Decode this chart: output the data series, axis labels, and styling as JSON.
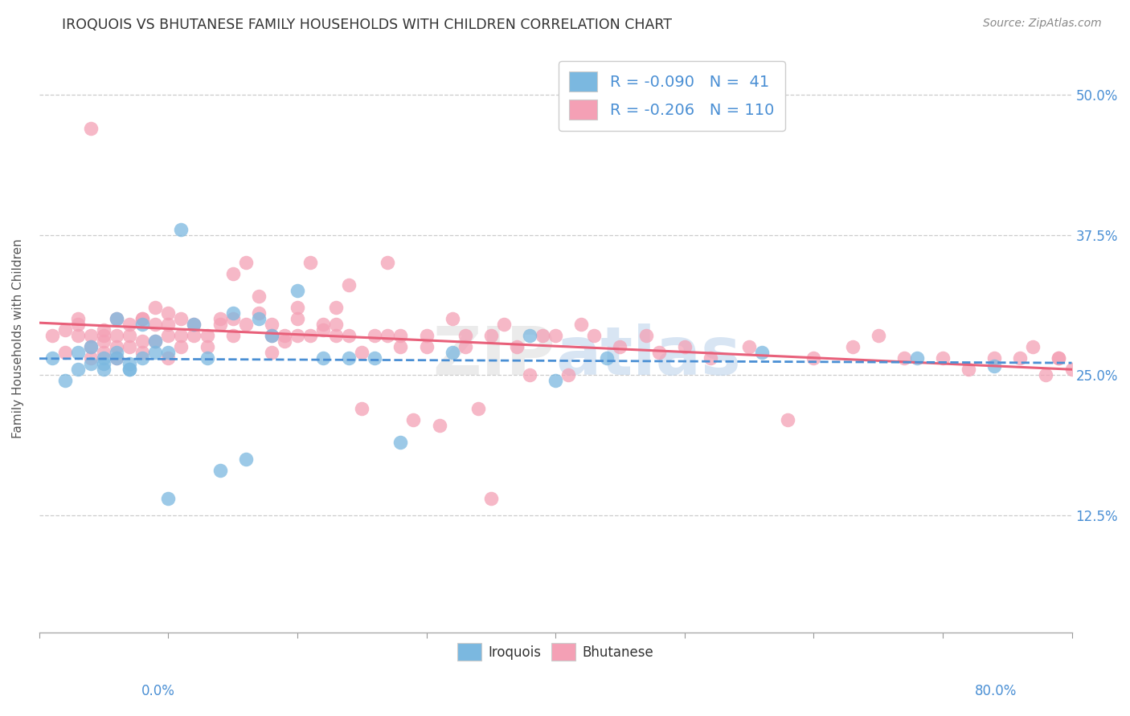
{
  "title": "IROQUOIS VS BHUTANESE FAMILY HOUSEHOLDS WITH CHILDREN CORRELATION CHART",
  "source": "Source: ZipAtlas.com",
  "ylabel": "Family Households with Children",
  "ytick_labels": [
    "12.5%",
    "25.0%",
    "37.5%",
    "50.0%"
  ],
  "ytick_values": [
    0.125,
    0.25,
    0.375,
    0.5
  ],
  "xlim": [
    0.0,
    0.8
  ],
  "ylim": [
    0.02,
    0.545
  ],
  "legend_irq_r": "-0.090",
  "legend_irq_n": "41",
  "legend_bhu_r": "-0.206",
  "legend_bhu_n": "110",
  "iroquois_color": "#7bb8e0",
  "bhutanese_color": "#f4a0b5",
  "iroquois_line_color": "#4a8fd4",
  "bhutanese_line_color": "#e8607a",
  "iroquois_x": [
    0.01,
    0.02,
    0.03,
    0.03,
    0.04,
    0.04,
    0.05,
    0.05,
    0.05,
    0.06,
    0.06,
    0.06,
    0.07,
    0.07,
    0.07,
    0.08,
    0.08,
    0.09,
    0.09,
    0.1,
    0.1,
    0.11,
    0.12,
    0.13,
    0.14,
    0.15,
    0.16,
    0.17,
    0.18,
    0.2,
    0.22,
    0.24,
    0.26,
    0.28,
    0.32,
    0.38,
    0.4,
    0.44,
    0.56,
    0.68,
    0.74
  ],
  "iroquois_y": [
    0.265,
    0.245,
    0.255,
    0.27,
    0.275,
    0.26,
    0.265,
    0.26,
    0.255,
    0.3,
    0.27,
    0.265,
    0.255,
    0.255,
    0.26,
    0.265,
    0.295,
    0.27,
    0.28,
    0.27,
    0.14,
    0.38,
    0.295,
    0.265,
    0.165,
    0.305,
    0.175,
    0.3,
    0.285,
    0.325,
    0.265,
    0.265,
    0.265,
    0.19,
    0.27,
    0.285,
    0.245,
    0.265,
    0.27,
    0.265,
    0.258
  ],
  "bhutanese_x": [
    0.01,
    0.02,
    0.02,
    0.03,
    0.03,
    0.03,
    0.04,
    0.04,
    0.04,
    0.04,
    0.05,
    0.05,
    0.05,
    0.05,
    0.06,
    0.06,
    0.06,
    0.06,
    0.07,
    0.07,
    0.07,
    0.08,
    0.08,
    0.08,
    0.08,
    0.09,
    0.09,
    0.09,
    0.1,
    0.1,
    0.1,
    0.1,
    0.11,
    0.11,
    0.11,
    0.12,
    0.12,
    0.13,
    0.13,
    0.14,
    0.14,
    0.15,
    0.15,
    0.15,
    0.16,
    0.16,
    0.17,
    0.17,
    0.18,
    0.18,
    0.18,
    0.19,
    0.19,
    0.2,
    0.2,
    0.2,
    0.21,
    0.21,
    0.22,
    0.22,
    0.23,
    0.23,
    0.23,
    0.24,
    0.24,
    0.25,
    0.25,
    0.26,
    0.27,
    0.27,
    0.28,
    0.28,
    0.29,
    0.3,
    0.3,
    0.31,
    0.32,
    0.33,
    0.33,
    0.34,
    0.35,
    0.35,
    0.36,
    0.37,
    0.38,
    0.39,
    0.4,
    0.41,
    0.42,
    0.43,
    0.45,
    0.47,
    0.48,
    0.5,
    0.52,
    0.55,
    0.58,
    0.6,
    0.63,
    0.65,
    0.67,
    0.7,
    0.72,
    0.74,
    0.76,
    0.77,
    0.78,
    0.79,
    0.79,
    0.8
  ],
  "bhutanese_y": [
    0.285,
    0.29,
    0.27,
    0.3,
    0.285,
    0.295,
    0.275,
    0.285,
    0.265,
    0.47,
    0.29,
    0.285,
    0.27,
    0.28,
    0.3,
    0.265,
    0.285,
    0.275,
    0.295,
    0.285,
    0.275,
    0.3,
    0.3,
    0.28,
    0.27,
    0.295,
    0.31,
    0.28,
    0.305,
    0.285,
    0.265,
    0.295,
    0.3,
    0.285,
    0.275,
    0.295,
    0.285,
    0.285,
    0.275,
    0.3,
    0.295,
    0.3,
    0.34,
    0.285,
    0.35,
    0.295,
    0.32,
    0.305,
    0.285,
    0.27,
    0.295,
    0.28,
    0.285,
    0.31,
    0.3,
    0.285,
    0.35,
    0.285,
    0.295,
    0.29,
    0.295,
    0.31,
    0.285,
    0.33,
    0.285,
    0.22,
    0.27,
    0.285,
    0.35,
    0.285,
    0.285,
    0.275,
    0.21,
    0.275,
    0.285,
    0.205,
    0.3,
    0.275,
    0.285,
    0.22,
    0.285,
    0.14,
    0.295,
    0.275,
    0.25,
    0.285,
    0.285,
    0.25,
    0.295,
    0.285,
    0.275,
    0.285,
    0.27,
    0.275,
    0.265,
    0.275,
    0.21,
    0.265,
    0.275,
    0.285,
    0.265,
    0.265,
    0.255,
    0.265,
    0.265,
    0.275,
    0.25,
    0.265,
    0.265,
    0.255
  ]
}
